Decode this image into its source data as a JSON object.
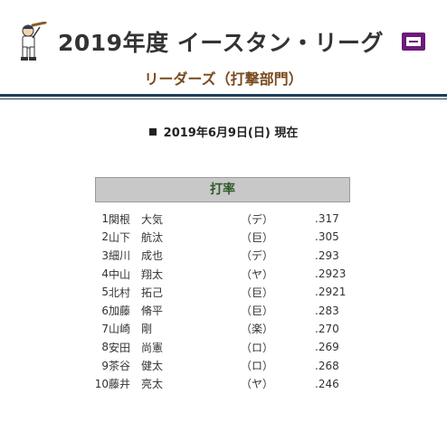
{
  "header": {
    "title": "2019年度 イースタン・リーグ",
    "subtitle": "リーダーズ（打撃部門）"
  },
  "as_of": "2019年6月9日(日) 現在",
  "category": "打率",
  "leaders": [
    {
      "rank": "1",
      "sei": "関根",
      "mei": "大気",
      "team": "（デ）",
      "value": ".317"
    },
    {
      "rank": "2",
      "sei": "山下",
      "mei": "航汰",
      "team": "（巨）",
      "value": ".305"
    },
    {
      "rank": "3",
      "sei": "細川",
      "mei": "成也",
      "team": "（デ）",
      "value": ".293"
    },
    {
      "rank": "4",
      "sei": "中山",
      "mei": "翔太",
      "team": "（ヤ）",
      "value": ".2923"
    },
    {
      "rank": "5",
      "sei": "北村",
      "mei": "拓己",
      "team": "（巨）",
      "value": ".2921"
    },
    {
      "rank": "6",
      "sei": "加藤",
      "mei": "脩平",
      "team": "（巨）",
      "value": ".283"
    },
    {
      "rank": "7",
      "sei": "山崎",
      "mei": "剛",
      "team": "（楽）",
      "value": ".270"
    },
    {
      "rank": "8",
      "sei": "安田",
      "mei": "尚憲",
      "team": "（ロ）",
      "value": ".269"
    },
    {
      "rank": "9",
      "sei": "茶谷",
      "mei": "健太",
      "team": "（ロ）",
      "value": ".268"
    },
    {
      "rank": "10",
      "sei": "藤井",
      "mei": "亮太",
      "team": "（ヤ）",
      "value": ".246"
    }
  ]
}
